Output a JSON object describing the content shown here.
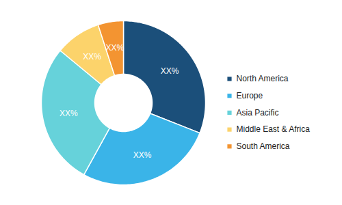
{
  "chart_data": {
    "type": "pie",
    "categories": [
      "North America",
      "Europe",
      "Asia Pacific",
      "Middle East & Africa",
      "South America"
    ],
    "values": [
      31,
      27,
      28,
      9,
      5
    ],
    "value_labels": [
      "XX%",
      "XX%",
      "XX%",
      "XX%",
      "XX%"
    ],
    "colors": [
      "#1b4f7a",
      "#3ab4e8",
      "#66d2da",
      "#fcd36b",
      "#f39431"
    ],
    "data_labels": true,
    "legend": "right"
  }
}
